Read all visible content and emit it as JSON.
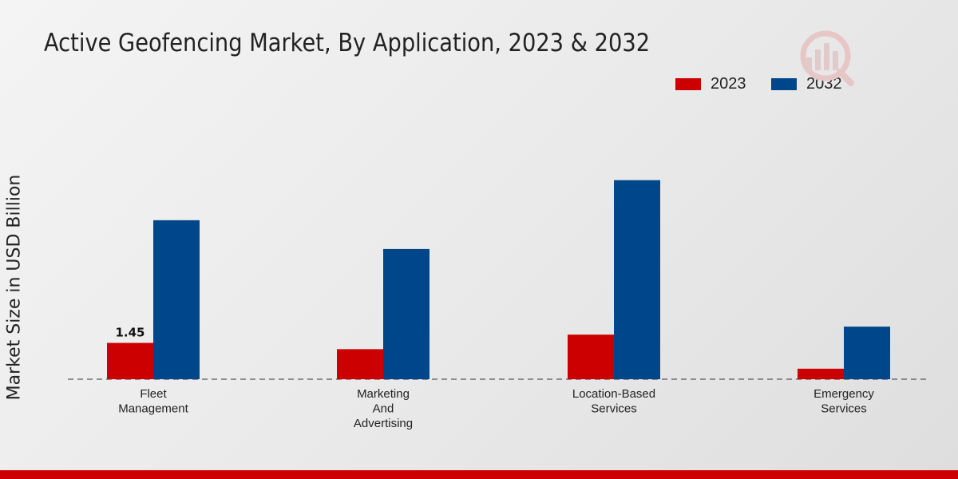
{
  "chart_data": {
    "type": "bar",
    "title": "Active Geofencing Market, By Application, 2023 & 2032",
    "xlabel": "",
    "ylabel": "Market Size in USD Billion",
    "categories": [
      "Fleet\nManagement",
      "Marketing\nAnd\nAdvertising",
      "Location-Based\nServices",
      "Emergency\nServices"
    ],
    "series": [
      {
        "name": "2023",
        "color": "#cc0000",
        "values": [
          1.45,
          1.2,
          1.78,
          0.42
        ]
      },
      {
        "name": "2032",
        "color": "#00468b",
        "values": [
          6.35,
          5.2,
          7.95,
          2.1
        ]
      }
    ],
    "data_labels": [
      {
        "series": 0,
        "index": 0,
        "text": "1.45"
      }
    ],
    "ylim": [
      0,
      11
    ],
    "grid": false,
    "legend_position": "top-right"
  },
  "colors": {
    "accent": "#cc0000",
    "secondary": "#00468b"
  },
  "watermark_icon": "market-research-logo-icon"
}
